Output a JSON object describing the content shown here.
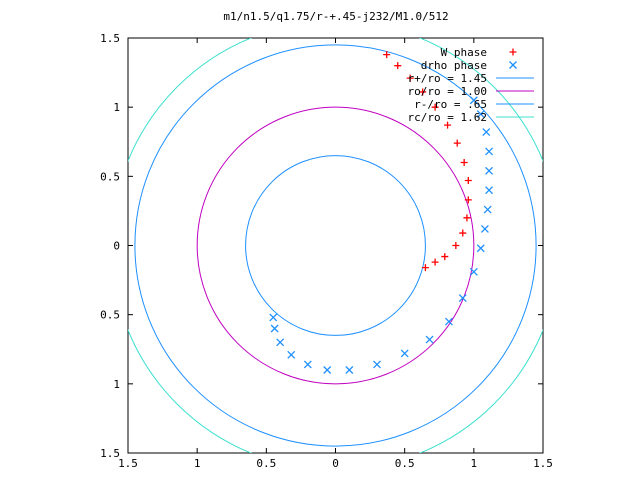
{
  "chart_data": {
    "type": "scatter",
    "title": "m1/n1.5/q1.75/r-+.45-j232/M1.0/512",
    "xlabel": "",
    "ylabel": "",
    "xlim": [
      -1.5,
      1.5
    ],
    "ylim": [
      -1.5,
      1.5
    ],
    "x_ticks": [
      -1.5,
      -1,
      -0.5,
      0,
      0.5,
      1,
      1.5
    ],
    "y_ticks": [
      -1.5,
      -1,
      -0.5,
      0,
      0.5,
      1,
      1.5
    ],
    "x_tick_labels": [
      "1.5",
      "1",
      "0.5",
      "0",
      "0.5",
      "1",
      "1.5"
    ],
    "y_tick_labels": [
      "1.5",
      "1",
      "0.5",
      "0",
      "0.5",
      "1",
      "1.5"
    ],
    "grid": false,
    "legend_position": "top-right",
    "series": [
      {
        "name": "W phase",
        "marker": "+",
        "color": "#ff0000",
        "points": [
          [
            0.37,
            1.38
          ],
          [
            0.45,
            1.3
          ],
          [
            0.54,
            1.21
          ],
          [
            0.63,
            1.11
          ],
          [
            0.72,
            1.0
          ],
          [
            0.81,
            0.87
          ],
          [
            0.88,
            0.74
          ],
          [
            0.93,
            0.6
          ],
          [
            0.96,
            0.47
          ],
          [
            0.96,
            0.33
          ],
          [
            0.95,
            0.2
          ],
          [
            0.92,
            0.09
          ],
          [
            0.87,
            0.0
          ],
          [
            0.79,
            -0.08
          ],
          [
            0.72,
            -0.12
          ],
          [
            0.65,
            -0.16
          ]
        ]
      },
      {
        "name": "drho phase",
        "marker": "x",
        "color": "#1e90ff",
        "points": [
          [
            1.0,
            1.05
          ],
          [
            1.05,
            0.95
          ],
          [
            1.09,
            0.82
          ],
          [
            1.11,
            0.68
          ],
          [
            1.11,
            0.54
          ],
          [
            1.11,
            0.4
          ],
          [
            1.1,
            0.26
          ],
          [
            1.08,
            0.12
          ],
          [
            1.05,
            -0.02
          ],
          [
            1.0,
            -0.19
          ],
          [
            0.92,
            -0.38
          ],
          [
            0.82,
            -0.55
          ],
          [
            0.68,
            -0.68
          ],
          [
            0.5,
            -0.78
          ],
          [
            0.3,
            -0.86
          ],
          [
            0.1,
            -0.9
          ],
          [
            -0.06,
            -0.9
          ],
          [
            -0.2,
            -0.86
          ],
          [
            -0.32,
            -0.79
          ],
          [
            -0.4,
            -0.7
          ],
          [
            -0.44,
            -0.6
          ],
          [
            -0.45,
            -0.52
          ]
        ]
      }
    ],
    "circles": [
      {
        "name": "r+/ro = 1.45",
        "r": 1.45,
        "color": "#1e90ff"
      },
      {
        "name": "ro/ro = 1.00",
        "r": 1.0,
        "color": "#c000c0"
      },
      {
        "name": "r-/ro = .65",
        "r": 0.65,
        "color": "#1e90ff"
      },
      {
        "name": "rc/ro = 1.62",
        "r": 1.62,
        "color": "#40e0d0"
      }
    ]
  }
}
